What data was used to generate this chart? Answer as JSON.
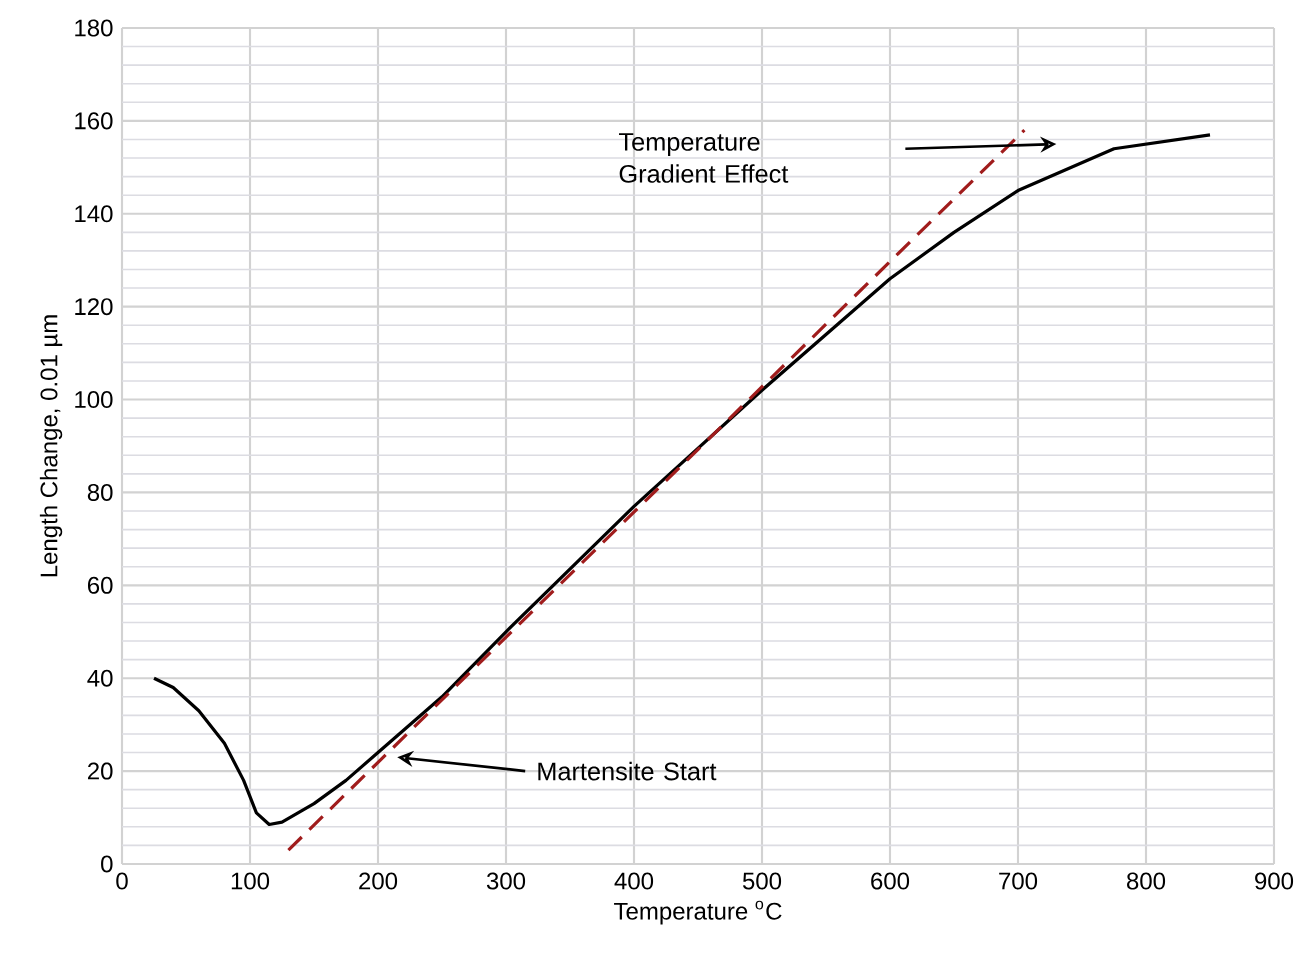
{
  "chart_data": {
    "type": "line",
    "xlabel": "Temperature $^{o}$C",
    "ylabel": "Length Change, 0.01 µm",
    "series": [
      {
        "color": "#000000",
        "line_style": "solid",
        "x": [
          25,
          40,
          60,
          80,
          95,
          105,
          115,
          125,
          150,
          175,
          200,
          250,
          300,
          400,
          500,
          600,
          650,
          700,
          775,
          850
        ],
        "values": [
          40,
          38,
          33,
          26,
          18,
          11,
          8.5,
          9,
          13,
          18,
          24,
          36,
          50,
          77,
          102,
          126,
          136,
          145,
          154,
          157
        ]
      },
      {
        "color": "#a01c1c",
        "line_style": "dashed",
        "x": [
          130,
          705
        ],
        "values": [
          3,
          158
        ]
      }
    ],
    "xlim": [
      0,
      900
    ],
    "xticks": [
      0,
      100,
      200,
      300,
      400,
      500,
      600,
      700,
      800,
      900
    ],
    "ylim": [
      0,
      180
    ],
    "yticks": [
      0,
      20,
      40,
      60,
      80,
      100,
      120,
      140,
      160,
      180
    ],
    "grid": true,
    "marker": "none",
    "annotations": [
      {
        "text": "Martensite Start",
        "x": 215,
        "y": 23
      },
      "Temperature Gradient Effect"
    ]
  }
}
